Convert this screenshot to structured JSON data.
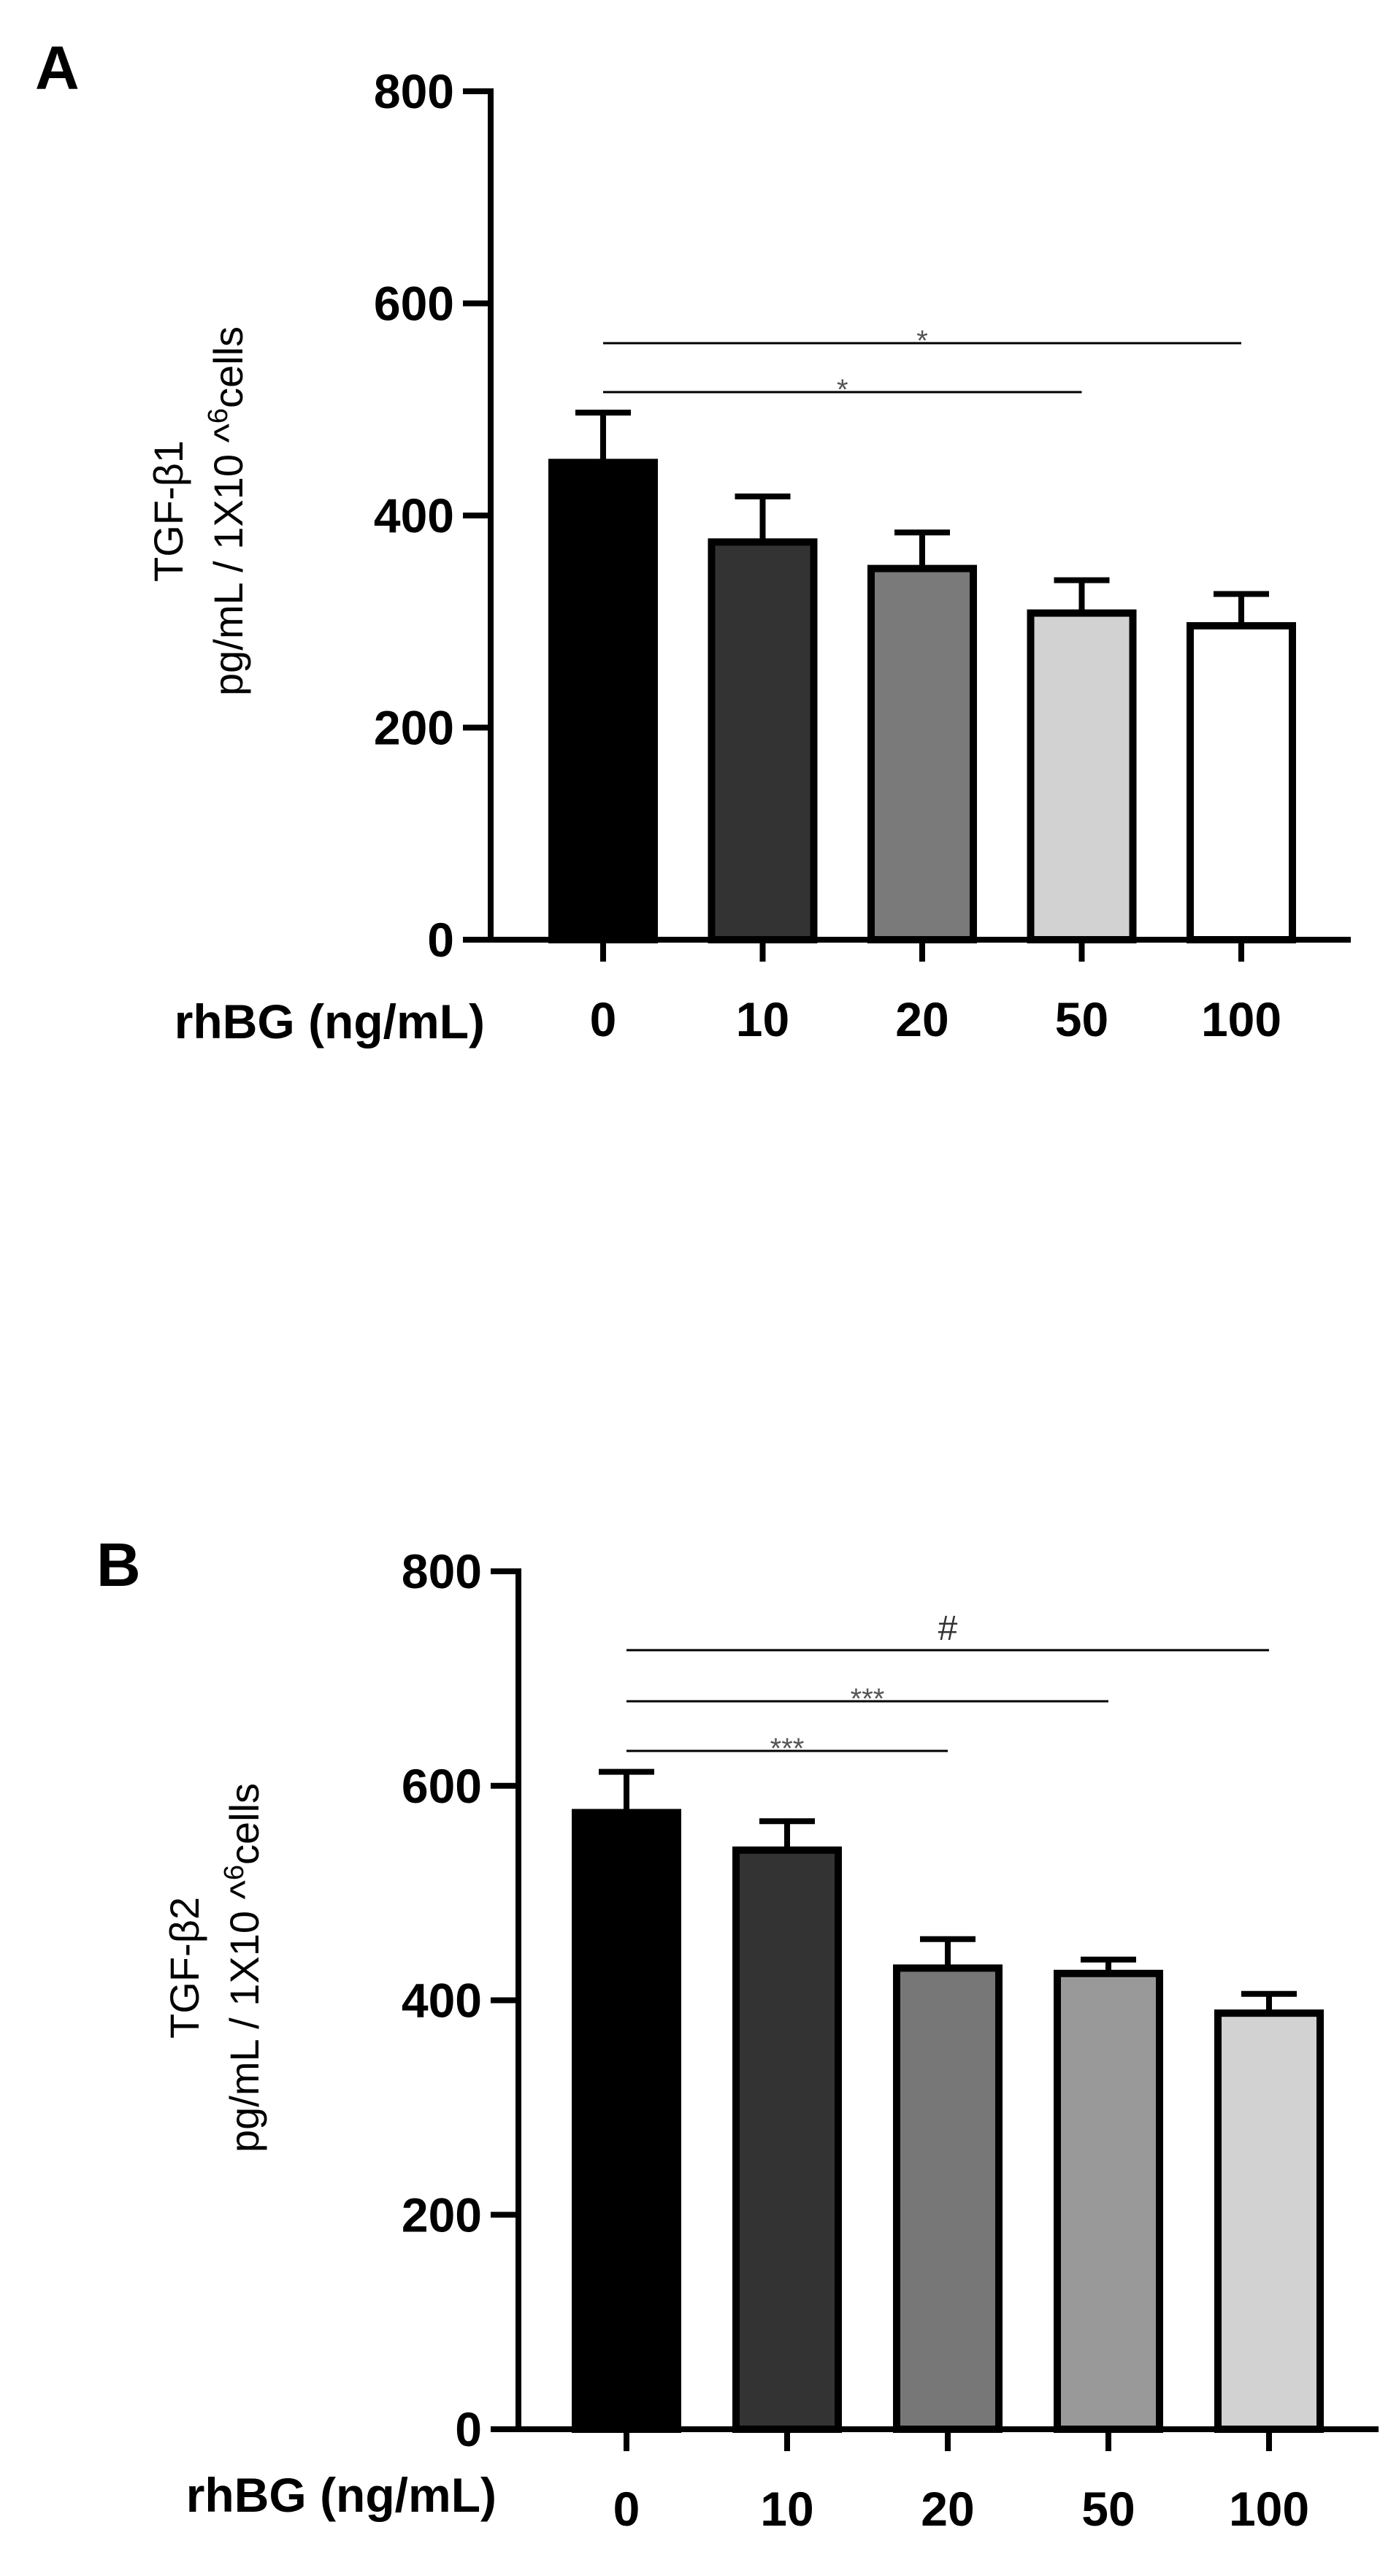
{
  "chart_data": [
    {
      "type": "bar",
      "panel_label": "A",
      "ylabel_line1": "TGF-β1",
      "ylabel_line2_prefix": "pg/mL / 1X10 ^",
      "ylabel_line2_sup": "6",
      "ylabel_line2_suffix": "cells",
      "xlabel": "rhBG (ng/mL)",
      "categories": [
        "0",
        "10",
        "20",
        "50",
        "100"
      ],
      "values": [
        450,
        375,
        350,
        308,
        296
      ],
      "errors": [
        47,
        43,
        34,
        31,
        30
      ],
      "bar_colors": [
        "#000000",
        "#333333",
        "#7a7a7a",
        "#d2d2d2",
        "#ffffff"
      ],
      "ylim": [
        0,
        800
      ],
      "yticks": [
        "0",
        "200",
        "400",
        "600",
        "800"
      ],
      "significance": [
        {
          "from": "0",
          "to": "100",
          "label": "*"
        },
        {
          "from": "0",
          "to": "50",
          "label": "*"
        }
      ]
    },
    {
      "type": "bar",
      "panel_label": "B",
      "ylabel_line1": "TGF-β2",
      "ylabel_line2_prefix": "pg/mL / 1X10 ^",
      "ylabel_line2_sup": "6",
      "ylabel_line2_suffix": "cells",
      "xlabel": "rhBG (ng/mL)",
      "categories": [
        "0",
        "10",
        "20",
        "50",
        "100"
      ],
      "values": [
        575,
        540,
        430,
        425,
        388
      ],
      "errors": [
        38,
        27,
        27,
        13,
        18
      ],
      "bar_colors": [
        "#000000",
        "#333333",
        "#777777",
        "#999999",
        "#d2d2d2"
      ],
      "ylim": [
        0,
        800
      ],
      "yticks": [
        "0",
        "200",
        "400",
        "600",
        "800"
      ],
      "significance": [
        {
          "from": "0",
          "to": "100",
          "label": "#"
        },
        {
          "from": "0",
          "to": "50",
          "label": "***"
        },
        {
          "from": "0",
          "to": "20",
          "label": "***"
        }
      ]
    }
  ]
}
